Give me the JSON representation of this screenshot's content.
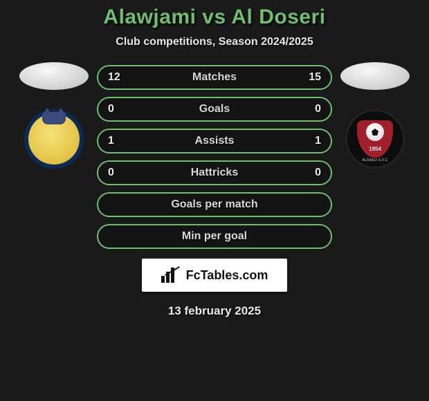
{
  "title": "Alawjami vs Al Doseri",
  "subtitle": "Club competitions, Season 2024/2025",
  "date": "13 february 2025",
  "badge": {
    "label": "FcTables.com"
  },
  "crest1": {
    "name": "Al Nassr crest"
  },
  "crest2": {
    "name": "Al Raed crest",
    "year": "1954",
    "ring_text": "ALRAED S.F.C"
  },
  "colors": {
    "accent": "#6fbf6f",
    "text": "#eaeaea",
    "bg": "#1a1a1a",
    "pill_border": "#6fbf6f",
    "badge_bg": "#ffffff"
  },
  "chart": {
    "type": "infographic",
    "rows": [
      {
        "label": "Matches",
        "left": "12",
        "right": "15"
      },
      {
        "label": "Goals",
        "left": "0",
        "right": "0"
      },
      {
        "label": "Assists",
        "left": "1",
        "right": "1"
      },
      {
        "label": "Hattricks",
        "left": "0",
        "right": "0"
      },
      {
        "label": "Goals per match",
        "left": "",
        "right": ""
      },
      {
        "label": "Min per goal",
        "left": "",
        "right": ""
      }
    ],
    "pill_height": 36,
    "pill_radius": 18,
    "border_width": 2,
    "label_fontsize": 16,
    "value_fontsize": 16,
    "gap": 10
  }
}
